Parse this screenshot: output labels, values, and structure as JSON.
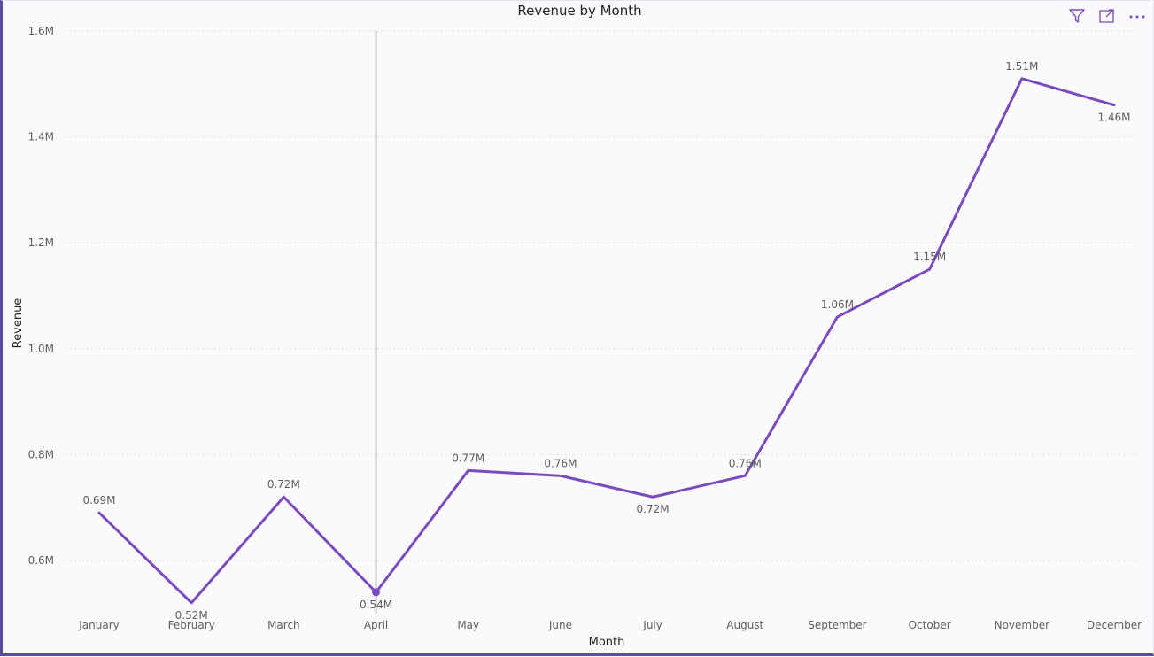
{
  "header": {
    "icons": [
      "filter-icon",
      "focus-mode-icon",
      "more-options-icon"
    ]
  },
  "colors": {
    "line": "#7b4bbd",
    "hover_line": "#8a8886",
    "grid": "#d9d7de",
    "border": "#5b4a9a"
  },
  "chart_data": {
    "type": "line",
    "title": "Revenue by Month",
    "xlabel": "Month",
    "ylabel": "Revenue",
    "categories": [
      "January",
      "February",
      "March",
      "April",
      "May",
      "June",
      "July",
      "August",
      "September",
      "October",
      "November",
      "December"
    ],
    "series": [
      {
        "values": [
          0.69,
          0.52,
          0.72,
          0.54,
          0.77,
          0.76,
          0.72,
          0.76,
          1.06,
          1.15,
          1.51,
          1.46
        ],
        "data_labels": [
          "0.69M",
          "0.52M",
          "0.72M",
          "0.54M",
          "0.77M",
          "0.76M",
          "0.72M",
          "0.76M",
          "1.06M",
          "1.15M",
          "1.51M",
          "1.46M"
        ]
      }
    ],
    "y_ticks": [
      0.6,
      0.8,
      1.0,
      1.2,
      1.4,
      1.6
    ],
    "y_tick_labels": [
      "0.6M",
      "0.8M",
      "1.0M",
      "1.2M",
      "1.4M",
      "1.6M"
    ],
    "ylim": [
      0.5,
      1.6
    ],
    "grid": true,
    "hover_category": "April"
  }
}
